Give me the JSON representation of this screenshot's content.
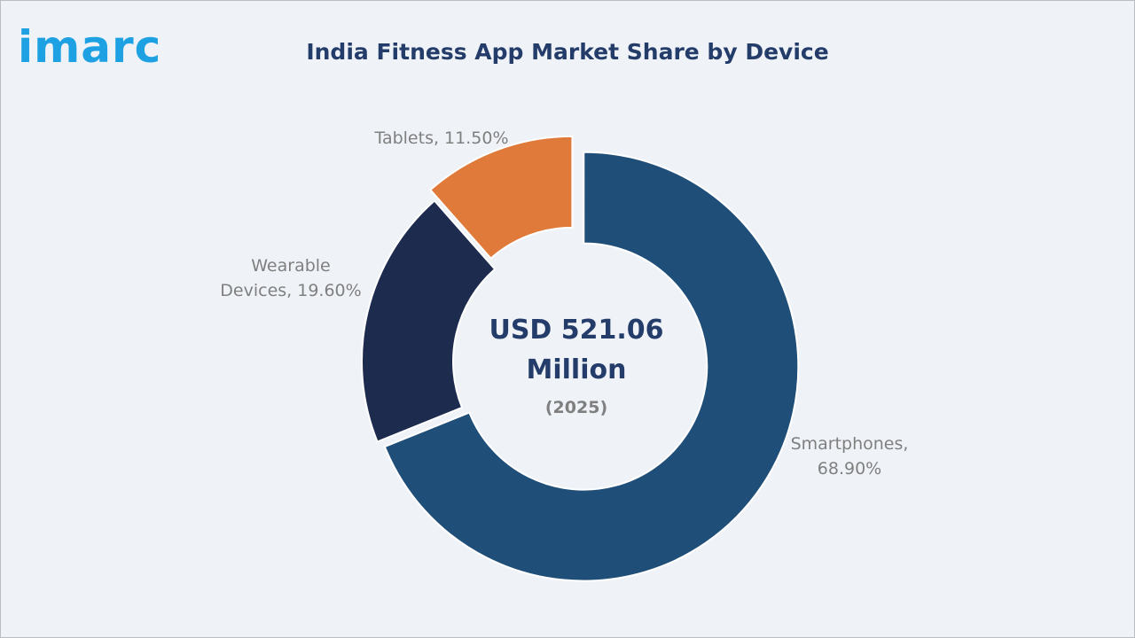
{
  "brand": {
    "logo_text": "imarc",
    "logo_color": "#1da1e2"
  },
  "chart_data": {
    "type": "pie",
    "subtype": "donut",
    "title": "India Fitness App Market Share by Device",
    "center_text": [
      "USD 521.06",
      "Million"
    ],
    "center_subtext": "(2025)",
    "slices": [
      {
        "label": "Smartphones",
        "value": 68.9,
        "display": [
          "Smartphones,",
          "68.90%"
        ],
        "color": "#1f4e79",
        "exploded": true
      },
      {
        "label": "Wearable Devices",
        "value": 19.6,
        "display": [
          "Wearable",
          "Devices, 19.60%"
        ],
        "color": "#1c2b4e",
        "exploded": false
      },
      {
        "label": "Tablets",
        "value": 11.5,
        "display": [
          "Tablets, 11.50%"
        ],
        "color": "#e07a3a",
        "exploded": true
      }
    ]
  },
  "colors": {
    "title": "#243c6a",
    "label": "#7f7f7f",
    "center": "#243c6a",
    "background": "#eff3f8"
  }
}
